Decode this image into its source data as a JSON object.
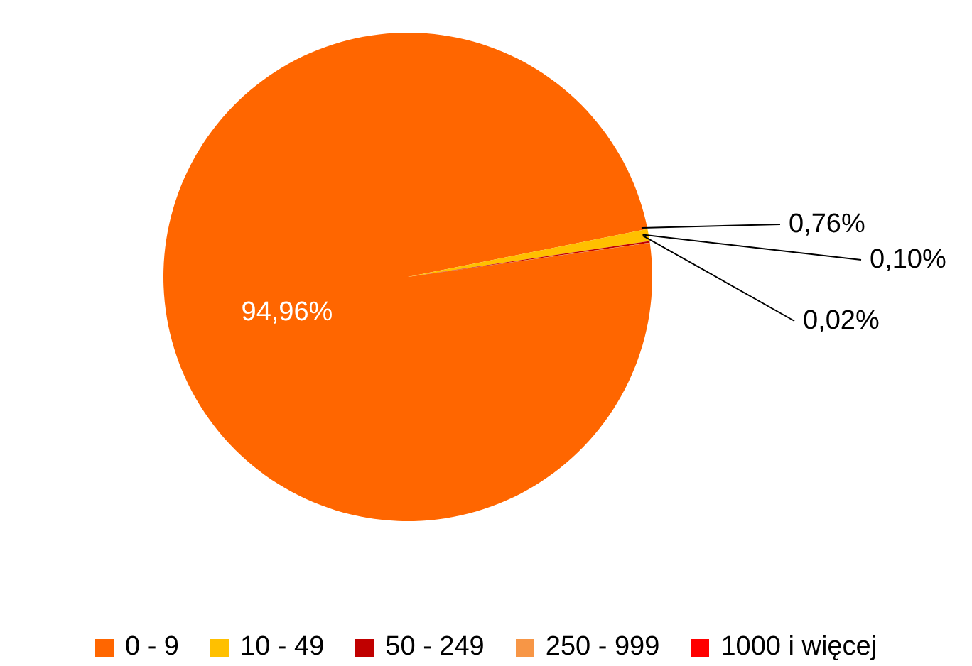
{
  "chart_data": {
    "type": "pie",
    "categories": [
      "0 - 9",
      "10 - 49",
      "50 - 249",
      "250 - 999",
      "1000 i więcej"
    ],
    "values": [
      94.96,
      0.76,
      0.1,
      0.02,
      null
    ],
    "colors": [
      "#ff6600",
      "#ffc000",
      "#c00000",
      "#f79646",
      "#ff0000"
    ],
    "value_labels": [
      "94,96%",
      "0,76%",
      "0,10%",
      "0,02%",
      null
    ],
    "legend": "bottom"
  }
}
